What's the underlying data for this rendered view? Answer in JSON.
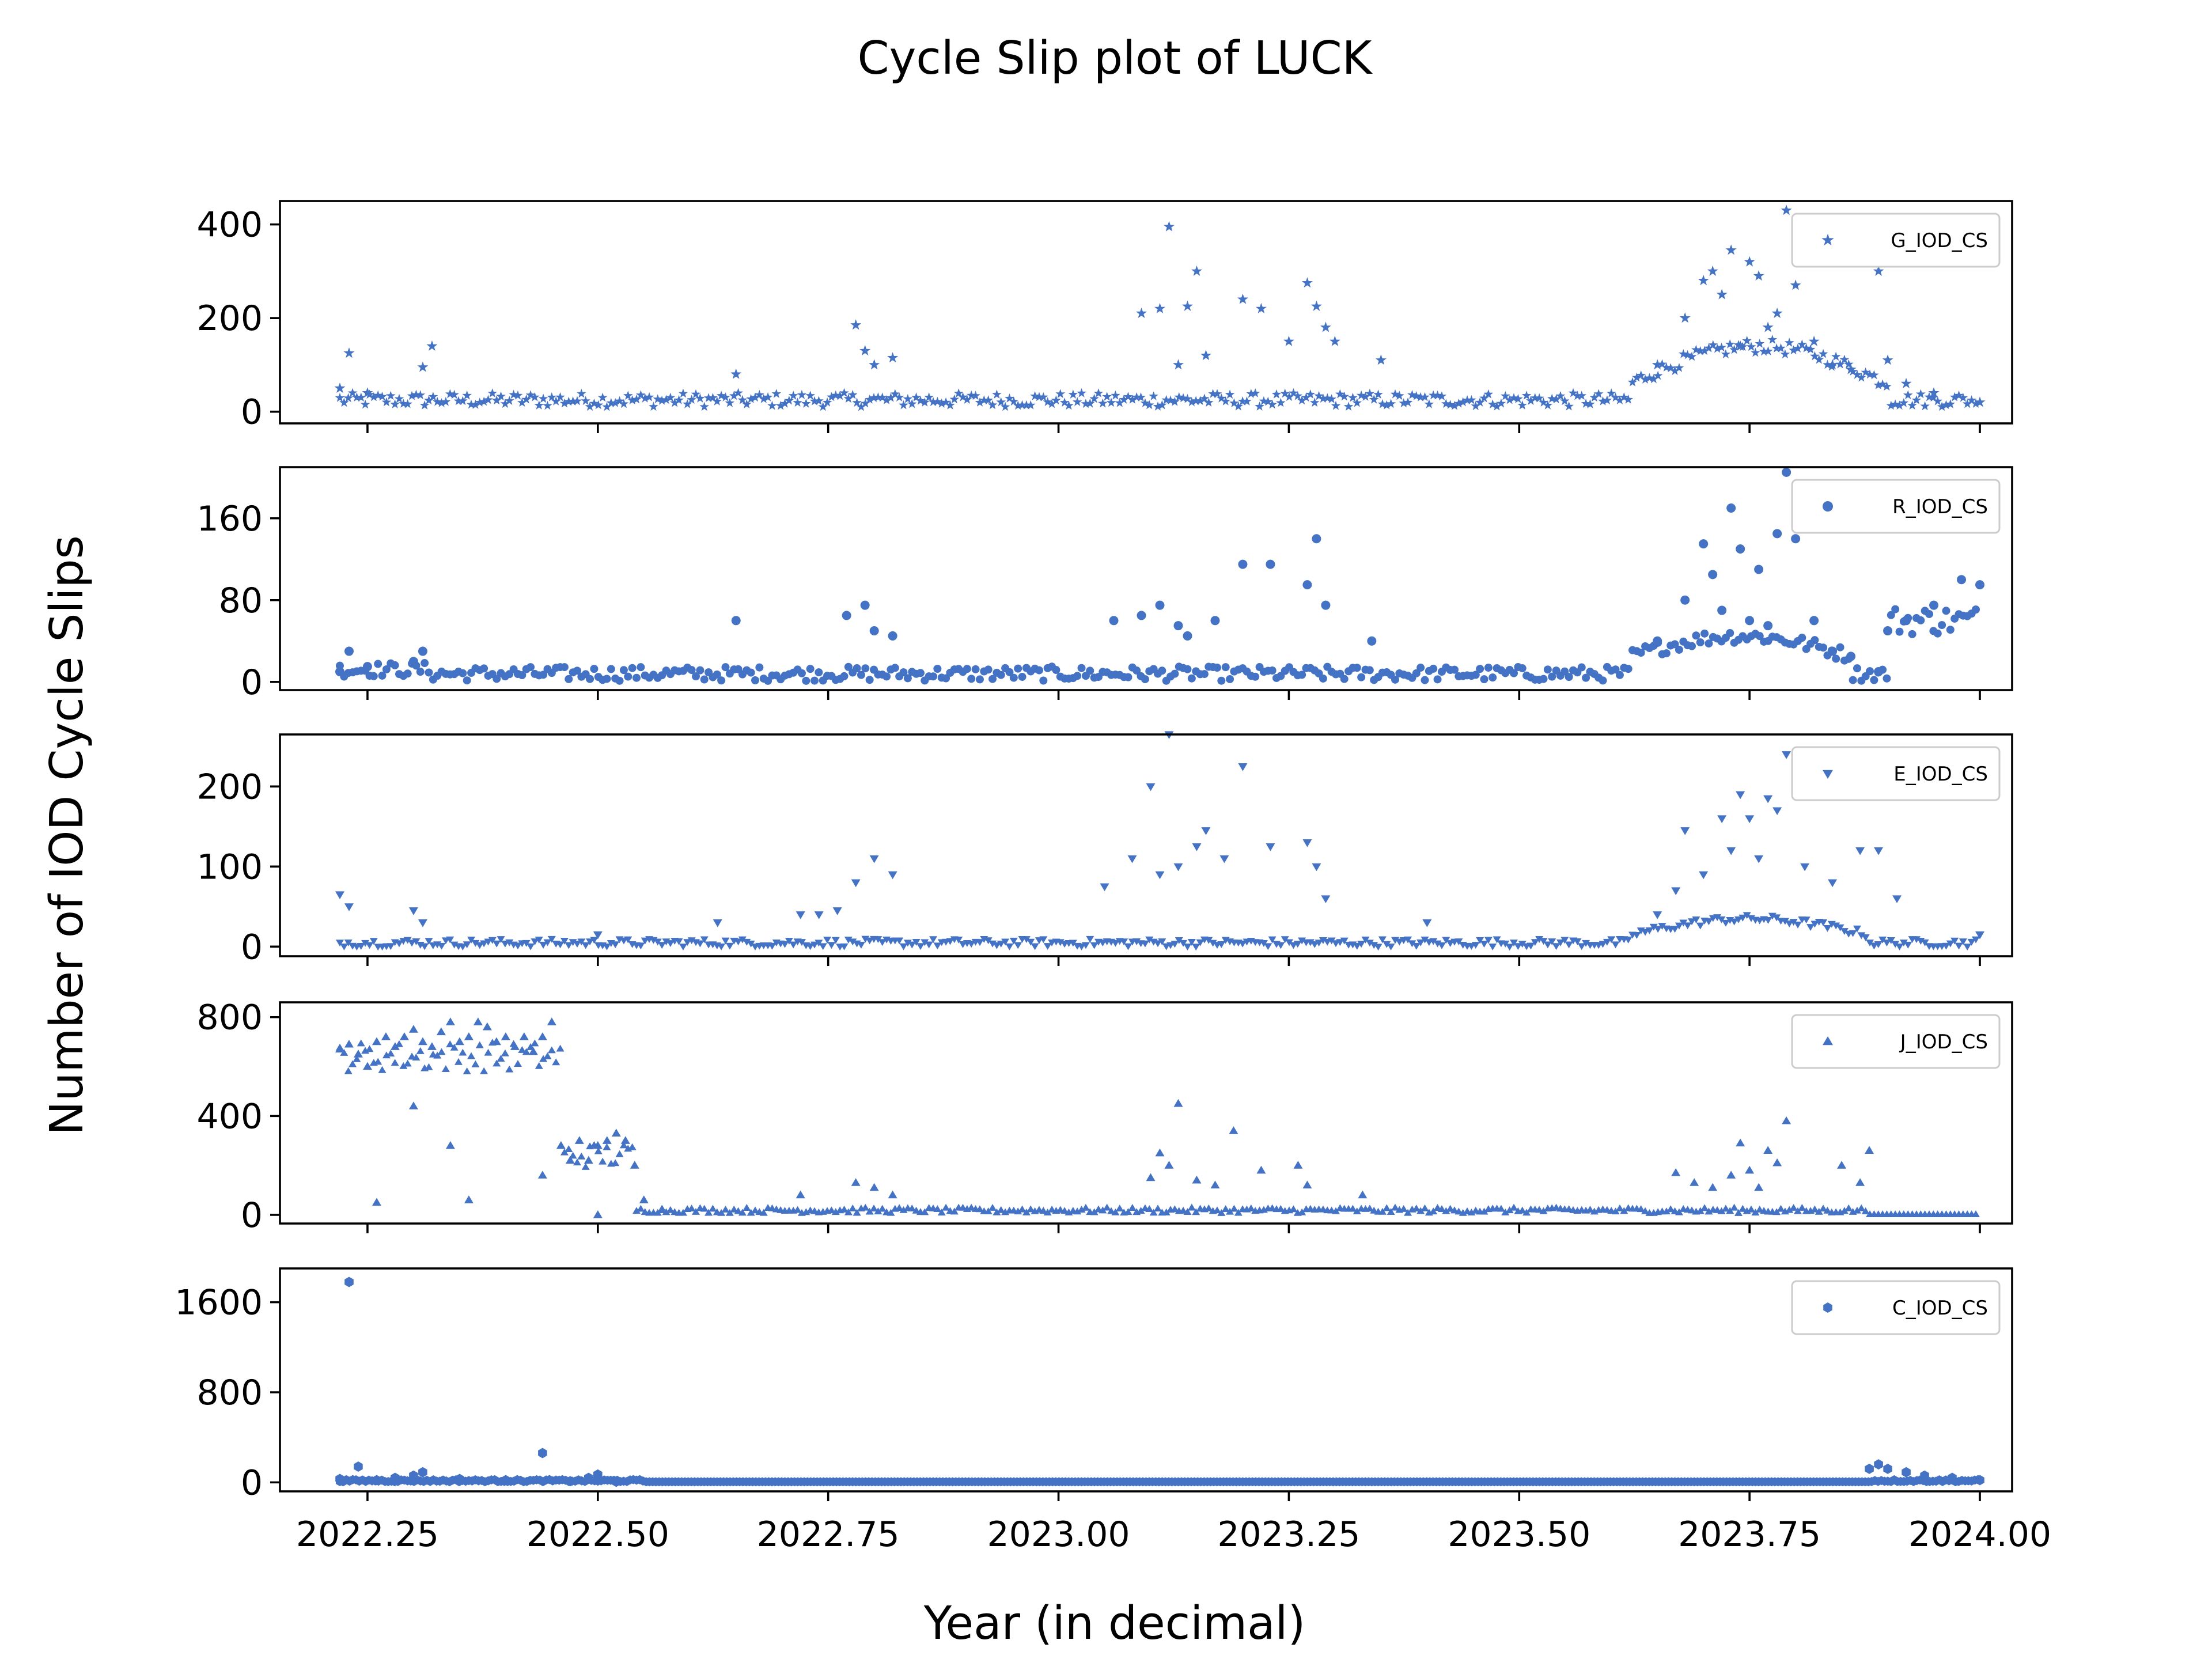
{
  "chart_data": {
    "type": "scatter",
    "title": "Cycle Slip plot of LUCK",
    "xlabel": "Year (in decimal)",
    "ylabel": "Number of IOD Cycle Slips",
    "xlim": [
      2022.155,
      2024.035
    ],
    "x_ticks": [
      2022.25,
      2022.5,
      2022.75,
      2023.0,
      2023.25,
      2023.5,
      2023.75,
      2024.0
    ],
    "x_tick_labels": [
      "2022.25",
      "2022.50",
      "2022.75",
      "2023.00",
      "2023.25",
      "2023.50",
      "2023.75",
      "2024.00"
    ],
    "x_range": [
      2022.22,
      2024.0
    ],
    "marker_color": "#4472c4",
    "legend_position": "upper right",
    "grid": false,
    "subplots": [
      {
        "name": "G_IOD_CS",
        "marker": "star",
        "ylim": [
          -25,
          450
        ],
        "y_ticks": [
          0,
          200,
          400
        ],
        "y_tick_labels": [
          "0",
          "200",
          "400"
        ],
        "x": [
          2022.22,
          2022.23,
          2022.25,
          2022.31,
          2022.32,
          2022.65,
          2022.78,
          2022.79,
          2022.8,
          2022.82,
          2023.09,
          2023.11,
          2023.12,
          2023.13,
          2023.14,
          2023.15,
          2023.16,
          2023.2,
          2023.22,
          2023.25,
          2023.27,
          2023.28,
          2023.29,
          2023.3,
          2023.35,
          2023.65,
          2023.68,
          2023.7,
          2023.71,
          2023.72,
          2023.73,
          2023.74,
          2023.75,
          2023.76,
          2023.77,
          2023.78,
          2023.79,
          2023.8,
          2023.82,
          2023.84,
          2023.86,
          2023.89,
          2023.9,
          2023.92,
          2023.95,
          2024.0
        ],
        "y": [
          50,
          125,
          40,
          95,
          140,
          80,
          185,
          130,
          100,
          115,
          210,
          220,
          395,
          100,
          225,
          300,
          120,
          240,
          220,
          150,
          275,
          225,
          180,
          150,
          110,
          100,
          200,
          280,
          300,
          250,
          345,
          140,
          320,
          290,
          180,
          210,
          430,
          270,
          150,
          100,
          90,
          300,
          110,
          60,
          40,
          20
        ]
      },
      {
        "name": "R_IOD_CS",
        "marker": "circle",
        "ylim": [
          -8,
          210
        ],
        "y_ticks": [
          0,
          80,
          160
        ],
        "y_tick_labels": [
          "0",
          "80",
          "160"
        ],
        "x": [
          2022.22,
          2022.23,
          2022.25,
          2022.3,
          2022.31,
          2022.65,
          2022.77,
          2022.79,
          2022.8,
          2022.82,
          2023.06,
          2023.09,
          2023.11,
          2023.13,
          2023.14,
          2023.17,
          2023.2,
          2023.23,
          2023.27,
          2023.28,
          2023.29,
          2023.34,
          2023.65,
          2023.68,
          2023.7,
          2023.71,
          2023.72,
          2023.73,
          2023.74,
          2023.75,
          2023.76,
          2023.77,
          2023.78,
          2023.79,
          2023.8,
          2023.82,
          2023.84,
          2023.86,
          2023.89,
          2023.9,
          2023.92,
          2023.95,
          2023.98,
          2024.0
        ],
        "y": [
          10,
          30,
          15,
          20,
          30,
          60,
          65,
          75,
          50,
          45,
          60,
          65,
          75,
          55,
          45,
          60,
          115,
          115,
          95,
          140,
          75,
          40,
          40,
          80,
          135,
          105,
          70,
          170,
          130,
          60,
          110,
          55,
          145,
          205,
          140,
          60,
          30,
          25,
          10,
          50,
          60,
          75,
          100,
          95
        ]
      },
      {
        "name": "E_IOD_CS",
        "marker": "triangle_down",
        "ylim": [
          -12,
          265
        ],
        "y_ticks": [
          0,
          100,
          200
        ],
        "y_tick_labels": [
          "0",
          "100",
          "200"
        ],
        "x": [
          2022.22,
          2022.23,
          2022.3,
          2022.31,
          2022.5,
          2022.63,
          2022.72,
          2022.74,
          2022.76,
          2022.78,
          2022.8,
          2022.82,
          2023.05,
          2023.08,
          2023.1,
          2023.11,
          2023.12,
          2023.13,
          2023.15,
          2023.16,
          2023.18,
          2023.2,
          2023.23,
          2023.27,
          2023.28,
          2023.29,
          2023.4,
          2023.65,
          2023.67,
          2023.68,
          2023.7,
          2023.72,
          2023.73,
          2023.74,
          2023.75,
          2023.76,
          2023.77,
          2023.78,
          2023.79,
          2023.81,
          2023.84,
          2023.87,
          2023.89,
          2023.91,
          2024.0
        ],
        "y": [
          65,
          50,
          45,
          30,
          15,
          30,
          40,
          40,
          45,
          80,
          110,
          90,
          75,
          110,
          200,
          90,
          265,
          100,
          125,
          145,
          110,
          225,
          125,
          130,
          100,
          60,
          30,
          40,
          70,
          145,
          90,
          160,
          120,
          190,
          160,
          110,
          185,
          170,
          240,
          100,
          80,
          120,
          120,
          60,
          15
        ]
      },
      {
        "name": "J_IOD_CS",
        "marker": "triangle_up",
        "ylim": [
          -35,
          860
        ],
        "y_ticks": [
          0,
          400,
          800
        ],
        "y_tick_labels": [
          "0",
          "400",
          "800"
        ],
        "x": [
          2022.22,
          2022.23,
          2022.24,
          2022.25,
          2022.26,
          2022.27,
          2022.28,
          2022.29,
          2022.3,
          2022.31,
          2022.32,
          2022.33,
          2022.34,
          2022.35,
          2022.36,
          2022.37,
          2022.38,
          2022.39,
          2022.4,
          2022.41,
          2022.42,
          2022.43,
          2022.44,
          2022.45,
          2022.46,
          2022.47,
          2022.48,
          2022.49,
          2022.5,
          2022.51,
          2022.52,
          2022.53,
          2022.54,
          2022.55,
          2022.57,
          2022.26,
          2022.34,
          2022.36,
          2022.3,
          2022.5,
          2022.44,
          2022.72,
          2022.78,
          2022.8,
          2022.82,
          2023.1,
          2023.11,
          2023.12,
          2023.13,
          2023.15,
          2023.17,
          2023.19,
          2023.22,
          2023.26,
          2023.27,
          2023.33,
          2023.67,
          2023.69,
          2023.71,
          2023.73,
          2023.74,
          2023.75,
          2023.76,
          2023.77,
          2023.78,
          2023.79,
          2023.85,
          2023.87,
          2023.88
        ],
        "y": [
          670,
          690,
          650,
          600,
          700,
          720,
          680,
          720,
          750,
          700,
          680,
          740,
          780,
          700,
          720,
          780,
          760,
          700,
          720,
          680,
          720,
          660,
          720,
          780,
          280,
          220,
          300,
          220,
          280,
          300,
          330,
          300,
          200,
          60,
          20,
          50,
          280,
          60,
          440,
          0,
          160,
          80,
          130,
          110,
          80,
          150,
          250,
          200,
          450,
          140,
          120,
          340,
          180,
          200,
          120,
          80,
          170,
          130,
          110,
          160,
          290,
          180,
          110,
          260,
          210,
          380,
          200,
          130,
          260
        ]
      },
      {
        "name": "C_IOD_CS",
        "marker": "hexagon",
        "ylim": [
          -80,
          1900
        ],
        "y_ticks": [
          0,
          800,
          1600
        ],
        "y_tick_labels": [
          "0",
          "800",
          "1600"
        ],
        "x": [
          2022.22,
          2022.23,
          2022.24,
          2022.26,
          2022.28,
          2022.3,
          2022.31,
          2022.35,
          2022.4,
          2022.44,
          2022.47,
          2022.49,
          2022.5,
          2022.52,
          2023.88,
          2023.89,
          2023.9,
          2023.92,
          2023.94,
          2023.97,
          2024.0
        ],
        "y": [
          30,
          1780,
          140,
          20,
          40,
          60,
          90,
          30,
          20,
          260,
          10,
          40,
          70,
          5,
          120,
          160,
          120,
          90,
          60,
          40,
          20
        ]
      }
    ]
  }
}
